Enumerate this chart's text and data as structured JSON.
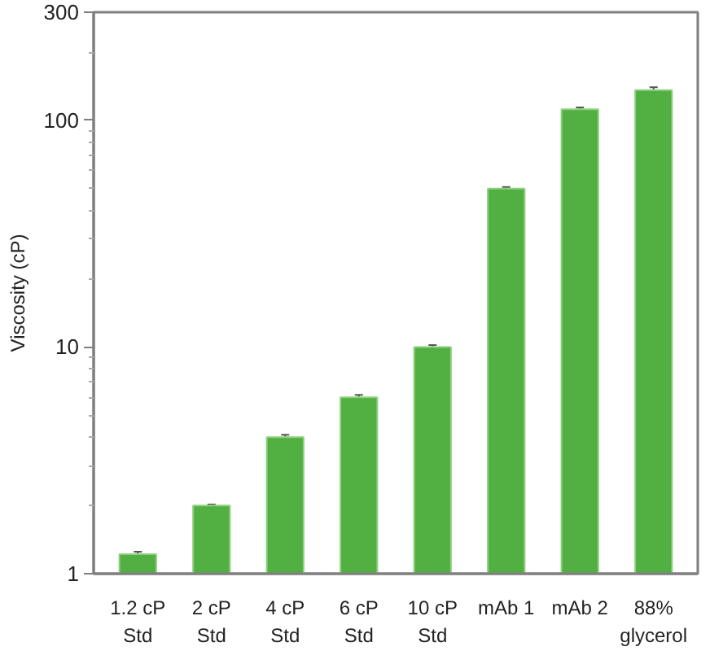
{
  "chart_data": {
    "type": "bar",
    "ylabel": "Viscosity (cP)",
    "categories": [
      "1.2 cP\nStd",
      "2 cP\nStd",
      "4 cP\nStd",
      "6 cP\nStd",
      "10 cP\nStd",
      "mAb 1",
      "mAb 2",
      "88%\nglycerol"
    ],
    "values": [
      1.22,
      2.0,
      4.0,
      6.0,
      10.0,
      50,
      112,
      136
    ],
    "errors": [
      0.03,
      0.02,
      0.1,
      0.15,
      0.2,
      0.8,
      2,
      4
    ],
    "color": "#52b043",
    "log": true,
    "ylim": [
      1,
      300
    ],
    "yticks": [
      1,
      {
        "value": 2,
        "label": null
      },
      {
        "value": 3,
        "label": null
      },
      {
        "value": 4,
        "label": null
      },
      {
        "value": 5,
        "label": null
      },
      {
        "value": 6,
        "label": null
      },
      {
        "value": 7,
        "label": null
      },
      {
        "value": 8,
        "label": null
      },
      {
        "value": 9,
        "label": null
      },
      10,
      {
        "value": 20,
        "label": null
      },
      {
        "value": 30,
        "label": null
      },
      {
        "value": 40,
        "label": null
      },
      {
        "value": 50,
        "label": null
      },
      {
        "value": 60,
        "label": null
      },
      {
        "value": 70,
        "label": null
      },
      {
        "value": 80,
        "label": null
      },
      {
        "value": 90,
        "label": null
      },
      100,
      {
        "value": 200,
        "label": null
      },
      300
    ]
  }
}
